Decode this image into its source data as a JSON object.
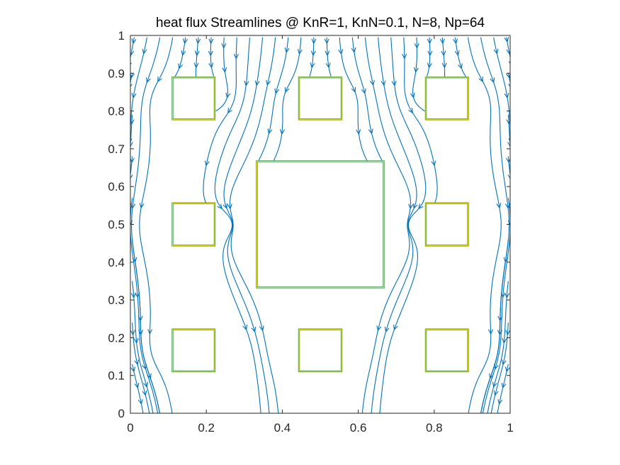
{
  "chart_data": {
    "type": "streamline",
    "title": "heat flux Streamlines @ KnR=1, KnN=0.1, N=8, Np=64",
    "xlabel": "",
    "ylabel": "",
    "xlim": [
      0,
      1
    ],
    "ylim": [
      0,
      1
    ],
    "xticks": [
      0,
      0.2,
      0.4,
      0.6,
      0.8,
      1
    ],
    "xtick_labels": [
      "0",
      "0.2",
      "0.4",
      "0.6",
      "0.8",
      "1"
    ],
    "yticks": [
      0,
      0.1,
      0.2,
      0.3,
      0.4,
      0.5,
      0.6,
      0.7,
      0.8,
      0.9,
      1
    ],
    "ytick_labels": [
      "0",
      "0.1",
      "0.2",
      "0.3",
      "0.4",
      "0.5",
      "0.6",
      "0.7",
      "0.8",
      "0.9",
      "1"
    ],
    "grid": false,
    "flow_direction": "top-to-bottom",
    "obstacles": [
      {
        "x0": 0.111,
        "x1": 0.222,
        "y0": 0.778,
        "y1": 0.889
      },
      {
        "x0": 0.444,
        "x1": 0.556,
        "y0": 0.778,
        "y1": 0.889
      },
      {
        "x0": 0.778,
        "x1": 0.889,
        "y0": 0.778,
        "y1": 0.889
      },
      {
        "x0": 0.111,
        "x1": 0.222,
        "y0": 0.444,
        "y1": 0.556
      },
      {
        "x0": 0.333,
        "x1": 0.667,
        "y0": 0.333,
        "y1": 0.667
      },
      {
        "x0": 0.778,
        "x1": 0.889,
        "y0": 0.444,
        "y1": 0.556
      },
      {
        "x0": 0.111,
        "x1": 0.222,
        "y0": 0.111,
        "y1": 0.222
      },
      {
        "x0": 0.444,
        "x1": 0.556,
        "y0": 0.111,
        "y1": 0.222
      },
      {
        "x0": 0.778,
        "x1": 0.889,
        "y0": 0.111,
        "y1": 0.222
      }
    ],
    "colors": {
      "streamline": "#0072BD",
      "obstacle_edge": "#E0E000",
      "obstacle_edge_inner": "#2E8B57",
      "axes": "#262626",
      "background": "#ffffff"
    }
  }
}
